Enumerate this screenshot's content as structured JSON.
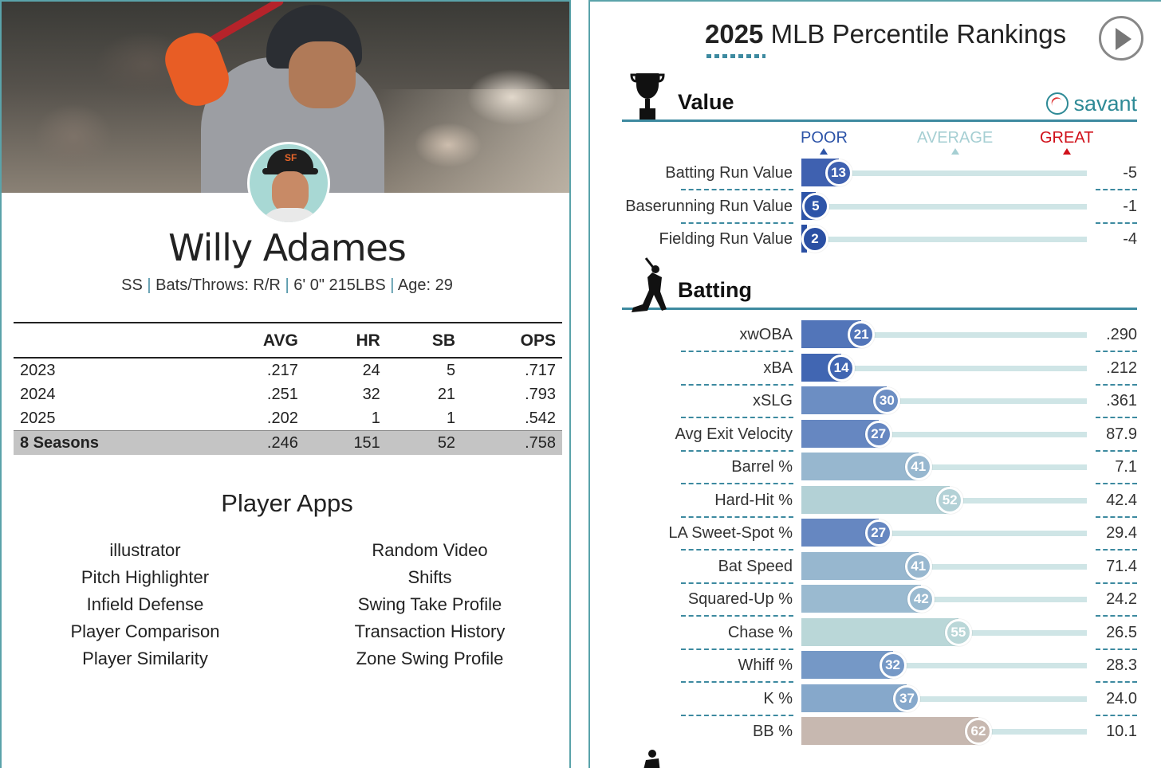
{
  "player": {
    "name": "Willy Adames",
    "position": "SS",
    "bats_throws": "Bats/Throws: R/R",
    "size": "6' 0\" 215LBS",
    "age": "Age: 29"
  },
  "stats_table": {
    "headers": [
      "",
      "AVG",
      "HR",
      "SB",
      "OPS"
    ],
    "rows": [
      [
        "2023",
        ".217",
        "24",
        "5",
        ".717"
      ],
      [
        "2024",
        ".251",
        "32",
        "21",
        ".793"
      ],
      [
        "2025",
        ".202",
        "1",
        "1",
        ".542"
      ]
    ],
    "total": [
      "8 Seasons",
      ".246",
      "151",
      "52",
      ".758"
    ]
  },
  "apps": {
    "title": "Player Apps",
    "left": [
      "illustrator",
      "Pitch Highlighter",
      "Infield Defense",
      "Player Comparison",
      "Player Similarity"
    ],
    "right": [
      "Random Video",
      "Shifts",
      "Swing Take Profile",
      "Transaction History",
      "Zone Swing Profile"
    ]
  },
  "rankings": {
    "title_year": "2025",
    "title_rest": " MLB Percentile Rankings",
    "brand": "savant",
    "scale": {
      "poor": "POOR",
      "average": "AVERAGE",
      "great": "GREAT"
    },
    "scale_colors": {
      "poor": "#2d54a8",
      "average": "#a6cfd3",
      "great": "#d0101a"
    },
    "sections": [
      {
        "name": "Value",
        "icon": "trophy-icon",
        "metrics": [
          {
            "label": "Batting Run Value",
            "percentile": 13,
            "value": "-5",
            "color": "#3f61b0"
          },
          {
            "label": "Baserunning Run Value",
            "percentile": 5,
            "value": "-1",
            "color": "#2d54a8"
          },
          {
            "label": "Fielding Run Value",
            "percentile": 2,
            "value": "-4",
            "color": "#2a4fa3"
          }
        ]
      },
      {
        "name": "Batting",
        "icon": "batter-icon",
        "metrics": [
          {
            "label": "xwOBA",
            "percentile": 21,
            "value": ".290",
            "color": "#5275b9"
          },
          {
            "label": "xBA",
            "percentile": 14,
            "value": ".212",
            "color": "#4166b2"
          },
          {
            "label": "xSLG",
            "percentile": 30,
            "value": ".361",
            "color": "#6c8ec3"
          },
          {
            "label": "Avg Exit Velocity",
            "percentile": 27,
            "value": "87.9",
            "color": "#6687c1"
          },
          {
            "label": "Barrel %",
            "percentile": 41,
            "value": "7.1",
            "color": "#97b7cf"
          },
          {
            "label": "Hard-Hit %",
            "percentile": 52,
            "value": "42.4",
            "color": "#b3d1d6"
          },
          {
            "label": "LA Sweet-Spot %",
            "percentile": 27,
            "value": "29.4",
            "color": "#6687c1"
          },
          {
            "label": "Bat Speed",
            "percentile": 41,
            "value": "71.4",
            "color": "#97b7cf"
          },
          {
            "label": "Squared-Up %",
            "percentile": 42,
            "value": "24.2",
            "color": "#9abad0"
          },
          {
            "label": "Chase %",
            "percentile": 55,
            "value": "26.5",
            "color": "#bad7d8"
          },
          {
            "label": "Whiff %",
            "percentile": 32,
            "value": "28.3",
            "color": "#7598c6"
          },
          {
            "label": "K %",
            "percentile": 37,
            "value": "24.0",
            "color": "#86a8cb"
          },
          {
            "label": "BB %",
            "percentile": 62,
            "value": "10.1",
            "color": "#c7b8b0"
          }
        ]
      }
    ]
  }
}
